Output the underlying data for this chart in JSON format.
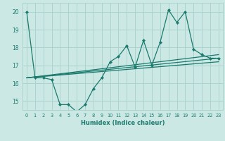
{
  "xlabel": "Humidex (Indice chaleur)",
  "bg_color": "#cce8e4",
  "grid_color": "#aad4ce",
  "line_color": "#1a7a6e",
  "xlim": [
    -0.5,
    23.5
  ],
  "ylim": [
    14.5,
    20.5
  ],
  "yticks": [
    15,
    16,
    17,
    18,
    19,
    20
  ],
  "xticks": [
    0,
    1,
    2,
    3,
    4,
    5,
    6,
    7,
    8,
    9,
    10,
    11,
    12,
    13,
    14,
    15,
    16,
    17,
    18,
    19,
    20,
    21,
    22,
    23
  ],
  "series": [
    {
      "x": [
        0,
        1,
        2,
        3,
        4,
        5,
        6,
        7,
        8,
        9,
        10,
        11,
        12,
        13,
        14,
        15,
        16,
        17,
        18,
        19,
        20,
        21,
        22,
        23
      ],
      "y": [
        20.0,
        16.3,
        16.3,
        16.2,
        14.8,
        14.8,
        14.4,
        14.8,
        15.7,
        16.3,
        17.2,
        17.5,
        18.1,
        16.9,
        18.4,
        17.0,
        18.3,
        20.1,
        19.4,
        20.0,
        17.9,
        17.6,
        17.4,
        17.4
      ],
      "marker": "D",
      "markersize": 2.2,
      "linewidth": 0.9
    },
    {
      "x": [
        0,
        23
      ],
      "y": [
        16.3,
        17.4
      ],
      "marker": null,
      "markersize": 0,
      "linewidth": 0.9
    },
    {
      "x": [
        0,
        23
      ],
      "y": [
        16.3,
        17.6
      ],
      "marker": null,
      "markersize": 0,
      "linewidth": 0.9
    },
    {
      "x": [
        0,
        23
      ],
      "y": [
        16.3,
        17.2
      ],
      "marker": null,
      "markersize": 0,
      "linewidth": 0.9
    }
  ]
}
